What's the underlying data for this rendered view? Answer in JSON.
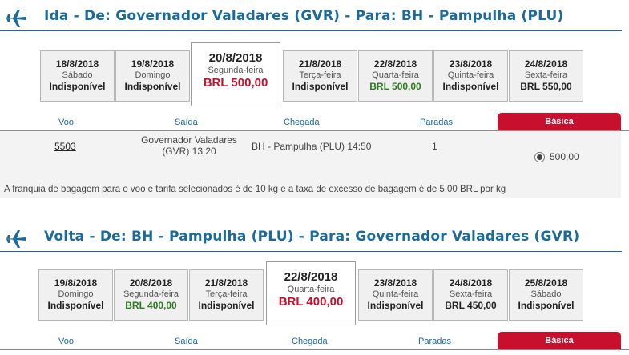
{
  "outbound": {
    "title": "Ida - De: Governador Valadares (GVR) - Para: BH - Pampulha (PLU)",
    "dates": [
      {
        "date": "18/8/2018",
        "weekday": "Sábado",
        "price": "Indisponível"
      },
      {
        "date": "19/8/2018",
        "weekday": "Domingo",
        "price": "Indisponível"
      },
      {
        "date": "20/8/2018",
        "weekday": "Segunda-feira",
        "price": "BRL 500,00"
      },
      {
        "date": "21/8/2018",
        "weekday": "Terça-feira",
        "price": "Indisponível"
      },
      {
        "date": "22/8/2018",
        "weekday": "Quarta-feira",
        "price": "BRL 500,00"
      },
      {
        "date": "23/8/2018",
        "weekday": "Quinta-feira",
        "price": "Indisponível"
      },
      {
        "date": "24/8/2018",
        "weekday": "Sexta-feira",
        "price": "BRL 550,00"
      }
    ],
    "columns": {
      "voo": "Voo",
      "saida": "Saída",
      "chegada": "Chegada",
      "paradas": "Paradas",
      "fare": "Básica"
    },
    "flight": {
      "number": "5503",
      "departure_line1": "Governador Valadares",
      "departure_line2": "(GVR) 13:20",
      "arrival": "BH - Pampulha (PLU) 14:50",
      "stops": "1",
      "fare_price": "500,00"
    },
    "baggage_note": "A franquia de bagagem para o voo e tarifa selecionados é de 10 kg e a taxa de excesso de bagagem é de 5.00 BRL por kg"
  },
  "return": {
    "title": "Volta - De: BH - Pampulha (PLU) - Para: Governador Valadares (GVR)",
    "dates": [
      {
        "date": "19/8/2018",
        "weekday": "Domingo",
        "price": "Indisponível"
      },
      {
        "date": "20/8/2018",
        "weekday": "Segunda-feira",
        "price": "BRL 400,00"
      },
      {
        "date": "21/8/2018",
        "weekday": "Terça-feira",
        "price": "Indisponível"
      },
      {
        "date": "22/8/2018",
        "weekday": "Quarta-feira",
        "price": "BRL 400,00"
      },
      {
        "date": "23/8/2018",
        "weekday": "Quinta-feira",
        "price": "Indisponível"
      },
      {
        "date": "24/8/2018",
        "weekday": "Sexta-feira",
        "price": "BRL 450,00"
      },
      {
        "date": "25/8/2018",
        "weekday": "Sábado",
        "price": "Indisponível"
      }
    ],
    "columns": {
      "voo": "Voo",
      "saida": "Saída",
      "chegada": "Chegada",
      "paradas": "Paradas",
      "fare": "Básica"
    }
  },
  "colors": {
    "brand_blue": "#1b6a99",
    "selected_red": "#c0102a",
    "fare_red": "#c8102e",
    "available_green": "#2c7a1e"
  },
  "icons": {
    "section": "plane-icon",
    "fare_select": "radio-icon"
  }
}
